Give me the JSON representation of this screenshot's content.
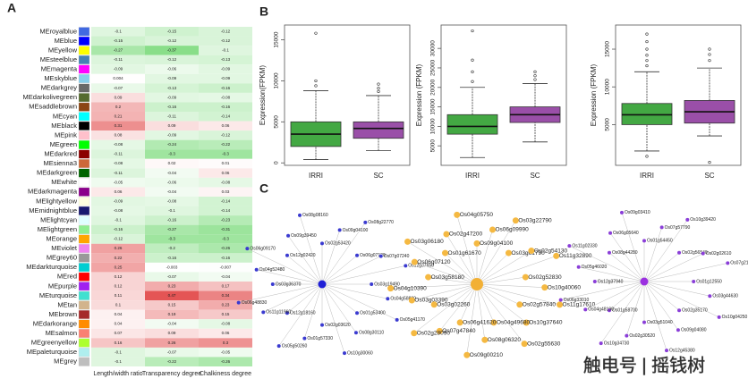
{
  "panels": [
    "A",
    "B",
    "C"
  ],
  "watermark": "触电号 | 摇钱树",
  "chart_data": [
    {
      "type": "heatmap",
      "rows": [
        "MEroyalblue",
        "MEblue",
        "MEyellow",
        "MEsteelblue",
        "MEmagenta",
        "MEskyblue",
        "MEdarkgrey",
        "MEdarkolivegreen",
        "MEsaddlebrown",
        "MEcyan",
        "MEblack",
        "MEpink",
        "MEgreen",
        "MEdarkred",
        "MEsienna3",
        "MEdarkgreen",
        "MEwhite",
        "MEdarkmagenta",
        "MElightyellow",
        "MEmidnightblue",
        "MElightcyan",
        "MElightgreen",
        "MEorange",
        "MEviolet",
        "MEgrey60",
        "MEdarkturquoise",
        "MEred",
        "MEpurple",
        "MEturquoise",
        "MEtan",
        "MEbrown",
        "MEdarkorange",
        "MEsalmon",
        "MEgreenyellow",
        "MEpaleturquoise",
        "MEgrey"
      ],
      "row_colors": [
        "#4169e1",
        "#0000ff",
        "#ffff00",
        "#4682b4",
        "#ff00ff",
        "#87ceeb",
        "#696969",
        "#556b2f",
        "#8b4513",
        "#00ffff",
        "#000000",
        "#ffc0cb",
        "#00ff00",
        "#8b0000",
        "#cd6839",
        "#006400",
        "#ffffff",
        "#8b008b",
        "#ffffe0",
        "#191970",
        "#e0ffff",
        "#90ee90",
        "#ffa500",
        "#ee82ee",
        "#999999",
        "#00ced1",
        "#ff0000",
        "#a020f0",
        "#40e0d0",
        "#d2b48c",
        "#a52a2a",
        "#ff8c00",
        "#fa8072",
        "#adff2f",
        "#afeeee",
        "#bebebe"
      ],
      "columns": [
        "Length/width ratio",
        "Transparency degree",
        "Chalkiness degree"
      ],
      "values": [
        [
          -0.1,
          -0.15,
          -0.12
        ],
        [
          -0.15,
          -0.12,
          -0.12
        ],
        [
          -0.27,
          -0.37,
          -0.1
        ],
        [
          -0.11,
          -0.12,
          -0.13
        ],
        [
          -0.09,
          -0.06,
          -0.09
        ],
        [
          0.004,
          -0.09,
          -0.09
        ],
        [
          -0.07,
          -0.13,
          -0.16
        ],
        [
          0.09,
          -0.09,
          -0.08
        ],
        [
          0.2,
          -0.16,
          -0.16
        ],
        [
          0.21,
          -0.11,
          -0.14
        ],
        [
          0.31,
          0.09,
          0.06
        ],
        [
          0.08,
          -0.09,
          -0.12
        ],
        [
          -0.08,
          -0.24,
          -0.22
        ],
        [
          -0.11,
          -0.3,
          -0.3
        ],
        [
          -0.08,
          0.02,
          0.01
        ],
        [
          -0.11,
          -0.04,
          0.06
        ],
        [
          -0.05,
          -0.06,
          -0.08
        ],
        [
          0.06,
          -0.04,
          0.03
        ],
        [
          -0.09,
          -0.08,
          -0.14
        ],
        [
          -0.08,
          -0.1,
          -0.14
        ],
        [
          -0.1,
          -0.16,
          -0.23
        ],
        [
          -0.16,
          -0.27,
          -0.31
        ],
        [
          -0.12,
          -0.3,
          -0.3
        ],
        [
          0.26,
          -0.2,
          -0.26
        ],
        [
          0.22,
          -0.16,
          -0.16
        ],
        [
          0.25,
          -0.003,
          -0.007
        ],
        [
          0.12,
          -0.07,
          -0.04
        ],
        [
          0.12,
          0.23,
          0.17
        ],
        [
          0.11,
          0.47,
          0.34
        ],
        [
          0.1,
          0.15,
          0.23
        ],
        [
          0.04,
          0.19,
          0.15
        ],
        [
          0.04,
          -0.04,
          -0.08
        ],
        [
          0.07,
          0.09,
          0.06
        ],
        [
          0.16,
          0.26,
          0.3
        ],
        [
          -0.1,
          -0.07,
          -0.05
        ],
        [
          -0.1,
          -0.22,
          -0.26
        ]
      ],
      "zlim": [
        -0.5,
        0.5
      ],
      "color_low": "#5fd35f",
      "color_high": "#e24a4a"
    },
    {
      "type": "box",
      "ylabel": "Expression(FPKM)",
      "categories": [
        "IRRI",
        "SC"
      ],
      "colors": [
        "#43a843",
        "#9a4fa8"
      ],
      "ylim": [
        -300,
        16800
      ],
      "yticks": [
        0,
        5000,
        10000,
        15000
      ],
      "boxes": [
        {
          "min": 400,
          "q1": 2000,
          "median": 3500,
          "q3": 5000,
          "max": 8800,
          "outliers": [
            9400,
            10000,
            15800
          ]
        },
        {
          "min": 1500,
          "q1": 3000,
          "median": 4200,
          "q3": 5000,
          "max": 8200,
          "outliers": [
            8700,
            9100,
            9600
          ]
        }
      ]
    },
    {
      "type": "box",
      "ylabel": "Expression (FPKM)",
      "categories": [
        "IRRI",
        "SC"
      ],
      "colors": [
        "#43a843",
        "#9a4fa8"
      ],
      "ylim": [
        0,
        36000
      ],
      "yticks": [
        5000,
        10000,
        15000,
        20000,
        25000,
        30000
      ],
      "boxes": [
        {
          "min": 2000,
          "q1": 8000,
          "median": 10000,
          "q3": 13000,
          "max": 20000,
          "outliers": [
            21500,
            24000,
            27000,
            34500
          ]
        },
        {
          "min": 6000,
          "q1": 11000,
          "median": 13000,
          "q3": 15000,
          "max": 21000,
          "outliers": [
            22000,
            23000,
            24000
          ]
        }
      ]
    },
    {
      "type": "box",
      "ylabel": "Expression (FPKM)",
      "categories": [
        "IRRI",
        "SC"
      ],
      "colors": [
        "#43a843",
        "#9a4fa8"
      ],
      "ylim": [
        -400,
        18200
      ],
      "yticks": [
        5000,
        10000,
        15000
      ],
      "boxes": [
        {
          "min": 1500,
          "q1": 5000,
          "median": 6300,
          "q3": 7800,
          "max": 12000,
          "outliers": [
            800,
            12800,
            13500,
            14200,
            15000,
            16000,
            17000
          ]
        },
        {
          "min": 3500,
          "q1": 5200,
          "median": 6700,
          "q3": 8200,
          "max": 12500,
          "outliers": [
            0,
            13500,
            14300,
            15000
          ]
        }
      ]
    }
  ],
  "networks": [
    {
      "hub_color": "#1f1fd6",
      "node_color": "#3a3ad0",
      "labels": [
        "Os02g53420",
        "Os09g04100",
        "Os08g22770",
        "Os06g07120",
        "Os07g07240",
        "Os12g37650",
        "Os03g19490",
        "Os04g58800",
        "Os05g41170",
        "Os01g53400",
        "Os08g30110",
        "Os10g30060",
        "Os02g03620",
        "Os01g57330",
        "Os05g50260",
        "Os12g18160",
        "Os11g11960",
        "Os06g48830",
        "Os03g36370",
        "Os04g52480",
        "Os06g09170",
        "Os12g02420",
        "Os09g39450",
        "Os08g08160"
      ]
    },
    {
      "hub_color": "#f2b035",
      "node_color": "#f5b942",
      "labels": [
        "Os09g04100",
        "Os06g09990",
        "Os03g22790",
        "Os03g61790",
        "Os02g54130",
        "Os11g32890",
        "Os02g52830",
        "Os10g40060",
        "Os11g17610",
        "Os02g57840",
        "Os10g37640",
        "Os02g55630",
        "Os04g49680",
        "Os08g06320",
        "Os09g00210",
        "Os06g41620",
        "Os07g47840",
        "Os02g28090",
        "Os03g02260",
        "Os03g03390",
        "Os04g10390",
        "Os03g58180",
        "Os06g07120",
        "Os03g06180",
        "Os01g61670",
        "Os02g47200",
        "Os04g05750"
      ]
    },
    {
      "hub_color": "#9b30e0",
      "node_color": "#8a3ed8",
      "labels": [
        "Os01g54450",
        "Os07g57790",
        "Os10g39420",
        "Os02g56540",
        "Os02g02610",
        "Os07g21420",
        "Os01g12550",
        "Os03g44630",
        "Os10g04250",
        "Os02g35170",
        "Os09g04080",
        "Os12g45380",
        "Os03g51040",
        "Os02g30520",
        "Os10g34730",
        "Os01g58700",
        "Os04g48190",
        "Os06g33010",
        "Os12g37940",
        "Os05g46020",
        "Os11g02330",
        "Os08g44280",
        "Os06g05640",
        "Os09g03410"
      ]
    }
  ]
}
